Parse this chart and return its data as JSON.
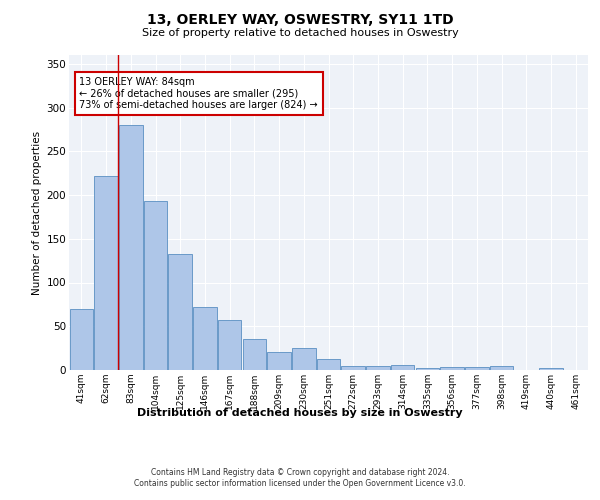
{
  "title": "13, OERLEY WAY, OSWESTRY, SY11 1TD",
  "subtitle": "Size of property relative to detached houses in Oswestry",
  "xlabel": "Distribution of detached houses by size in Oswestry",
  "ylabel": "Number of detached properties",
  "categories": [
    "41sqm",
    "62sqm",
    "83sqm",
    "104sqm",
    "125sqm",
    "146sqm",
    "167sqm",
    "188sqm",
    "209sqm",
    "230sqm",
    "251sqm",
    "272sqm",
    "293sqm",
    "314sqm",
    "335sqm",
    "356sqm",
    "377sqm",
    "398sqm",
    "419sqm",
    "440sqm",
    "461sqm"
  ],
  "values": [
    70,
    222,
    280,
    193,
    133,
    72,
    57,
    35,
    21,
    25,
    13,
    5,
    5,
    6,
    2,
    4,
    4,
    5,
    0,
    2,
    0
  ],
  "bar_color": "#aec6e8",
  "bar_edge_color": "#5a8fc2",
  "bg_color": "#eef2f8",
  "grid_color": "#ffffff",
  "vline_x": 1.5,
  "vline_color": "#cc0000",
  "annotation_text": "13 OERLEY WAY: 84sqm\n← 26% of detached houses are smaller (295)\n73% of semi-detached houses are larger (824) →",
  "annotation_box_color": "#ffffff",
  "annotation_box_edge": "#cc0000",
  "footer_line1": "Contains HM Land Registry data © Crown copyright and database right 2024.",
  "footer_line2": "Contains public sector information licensed under the Open Government Licence v3.0.",
  "ylim": [
    0,
    360
  ],
  "yticks": [
    0,
    50,
    100,
    150,
    200,
    250,
    300,
    350
  ]
}
